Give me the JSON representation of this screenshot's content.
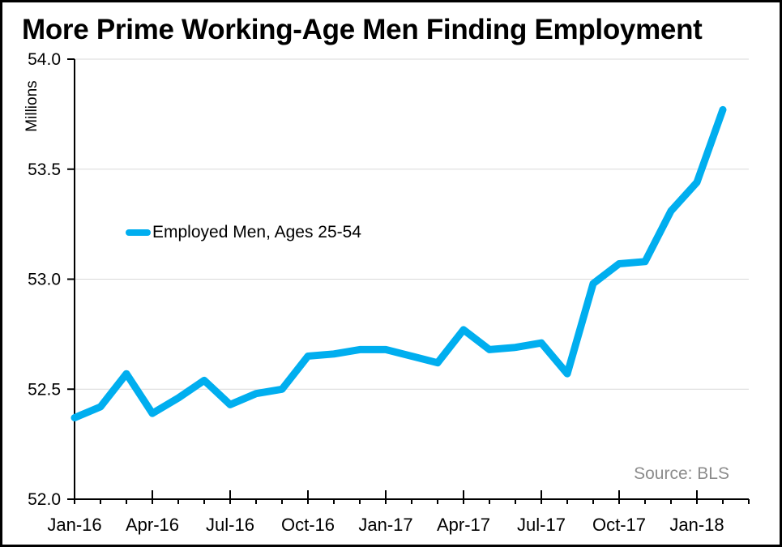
{
  "colors": {
    "line": "#00AEEF",
    "grid": "#D9D9D9",
    "axis": "#000000",
    "text": "#000000",
    "source_text": "#8C8C8C"
  },
  "chart_data": {
    "type": "line",
    "title": "More Prime Working-Age Men Finding Employment",
    "ylabel": "Millions",
    "xlabel": "",
    "source": "Source: BLS",
    "legend_position": "inside-left",
    "grid": "horizontal",
    "ylim": [
      52.0,
      54.0
    ],
    "yticks": [
      52.0,
      52.5,
      53.0,
      53.5,
      54.0
    ],
    "ytick_labels": [
      "52.0",
      "52.5",
      "53.0",
      "53.5",
      "54.0"
    ],
    "x": [
      "Jan-16",
      "Feb-16",
      "Mar-16",
      "Apr-16",
      "May-16",
      "Jun-16",
      "Jul-16",
      "Aug-16",
      "Sep-16",
      "Oct-16",
      "Nov-16",
      "Dec-16",
      "Jan-17",
      "Feb-17",
      "Mar-17",
      "Apr-17",
      "May-17",
      "Jun-17",
      "Jul-17",
      "Aug-17",
      "Sep-17",
      "Oct-17",
      "Nov-17",
      "Dec-17",
      "Jan-18",
      "Feb-18"
    ],
    "xtick_major_every": 3,
    "xtick_labels_shown": [
      "Jan-16",
      "Apr-16",
      "Jul-16",
      "Oct-16",
      "Jan-17",
      "Apr-17",
      "Jul-17",
      "Oct-17",
      "Jan-18"
    ],
    "series": [
      {
        "name": "Employed Men, Ages 25-54",
        "values": [
          52.37,
          52.42,
          52.57,
          52.39,
          52.46,
          52.54,
          52.43,
          52.48,
          52.5,
          52.65,
          52.66,
          52.68,
          52.68,
          52.65,
          52.62,
          52.77,
          52.68,
          52.69,
          52.71,
          52.57,
          52.98,
          53.07,
          53.08,
          53.31,
          53.44,
          53.77
        ]
      }
    ]
  }
}
